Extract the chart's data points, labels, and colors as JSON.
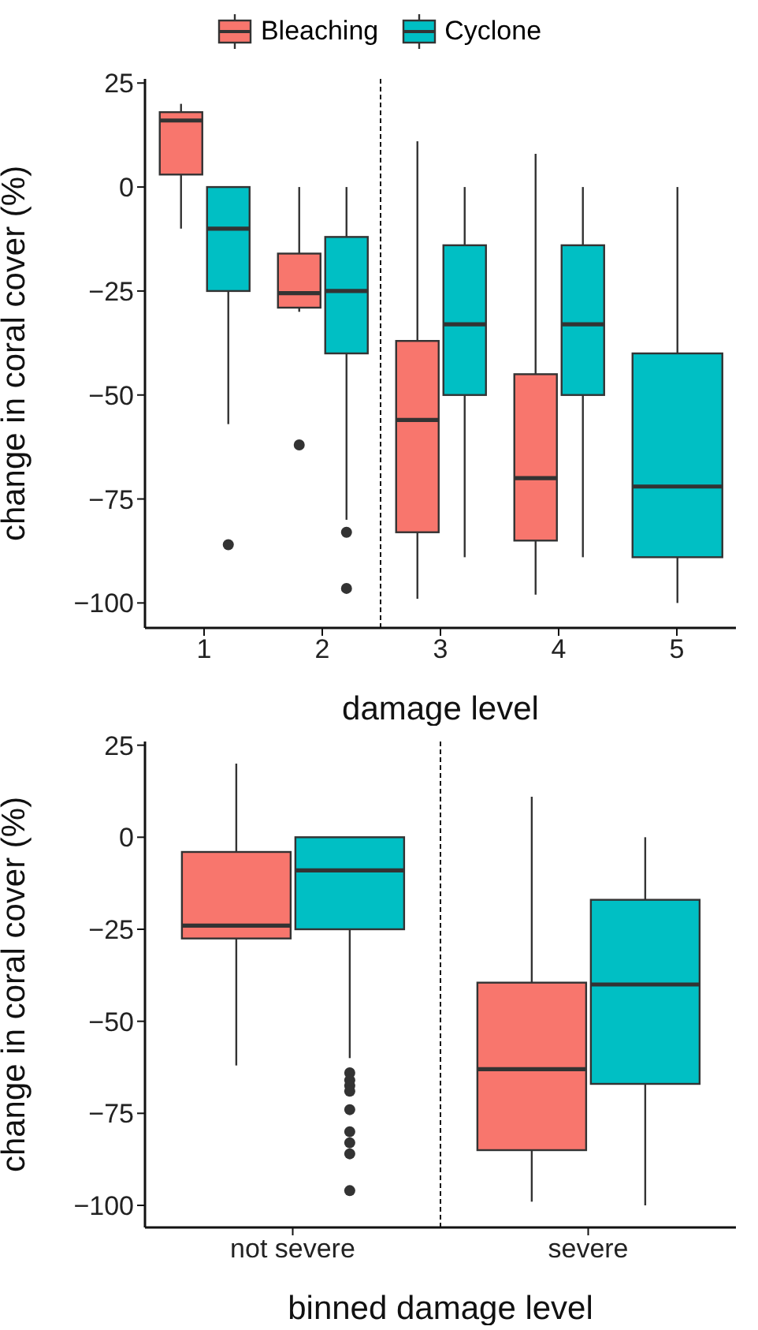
{
  "chart_data": [
    {
      "type": "box",
      "xlabel": "damage level",
      "ylabel": "change in coral cover (%)",
      "categories": [
        "1",
        "2",
        "3",
        "4",
        "5"
      ],
      "ylim": [
        -106,
        26
      ],
      "yticks": [
        25,
        0,
        -25,
        -50,
        -75,
        -100
      ],
      "grid": false,
      "legend": "top",
      "series": [
        {
          "name": "Bleaching",
          "color": "#f8766d",
          "boxes": [
            {
              "low": -10,
              "q1": 3,
              "median": 16,
              "q3": 18,
              "high": 20
            },
            {
              "low": -30,
              "q1": -29,
              "median": -25.5,
              "q3": -16,
              "high": 0,
              "outliers": [
                -62
              ]
            },
            {
              "low": -99,
              "q1": -83,
              "median": -56,
              "q3": -37,
              "high": 11
            },
            {
              "low": -98,
              "q1": -85,
              "median": -70,
              "q3": -45,
              "high": 8
            },
            null
          ]
        },
        {
          "name": "Cyclone",
          "color": "#00bfc4",
          "boxes": [
            {
              "low": -57,
              "q1": -25,
              "median": -10,
              "q3": 0,
              "high": 0,
              "outliers": [
                -86
              ]
            },
            {
              "low": -80,
              "q1": -40,
              "median": -25,
              "q3": -12,
              "high": 0,
              "outliers": [
                -83,
                -96.5
              ]
            },
            {
              "low": -89,
              "q1": -50,
              "median": -33,
              "q3": -14,
              "high": 0
            },
            {
              "low": -89,
              "q1": -50,
              "median": -33,
              "q3": -14,
              "high": 0
            },
            {
              "low": -100,
              "q1": -89,
              "median": -72,
              "q3": -40,
              "high": 0
            }
          ]
        }
      ]
    },
    {
      "type": "box",
      "xlabel": "binned damage level",
      "ylabel": "change in coral cover (%)",
      "categories": [
        "not severe",
        "severe"
      ],
      "ylim": [
        -106,
        26
      ],
      "yticks": [
        25,
        0,
        -25,
        -50,
        -75,
        -100
      ],
      "grid": false,
      "series": [
        {
          "color": "#f8766d",
          "boxes": [
            {
              "low": -62,
              "q1": -27.5,
              "median": -24,
              "q3": -4,
              "high": 20
            },
            {
              "low": -99,
              "q1": -85,
              "median": -63,
              "q3": -39.5,
              "high": 11
            }
          ]
        },
        {
          "color": "#00bfc4",
          "boxes": [
            {
              "low": -60,
              "q1": -25,
              "median": -9,
              "q3": 0,
              "high": 0,
              "outliers": [
                -64,
                -66,
                -67.5,
                -69,
                -74,
                -80,
                -83,
                -86,
                -96
              ]
            },
            {
              "low": -100,
              "q1": -67,
              "median": -40,
              "q3": -17,
              "high": 0
            }
          ]
        }
      ]
    }
  ]
}
